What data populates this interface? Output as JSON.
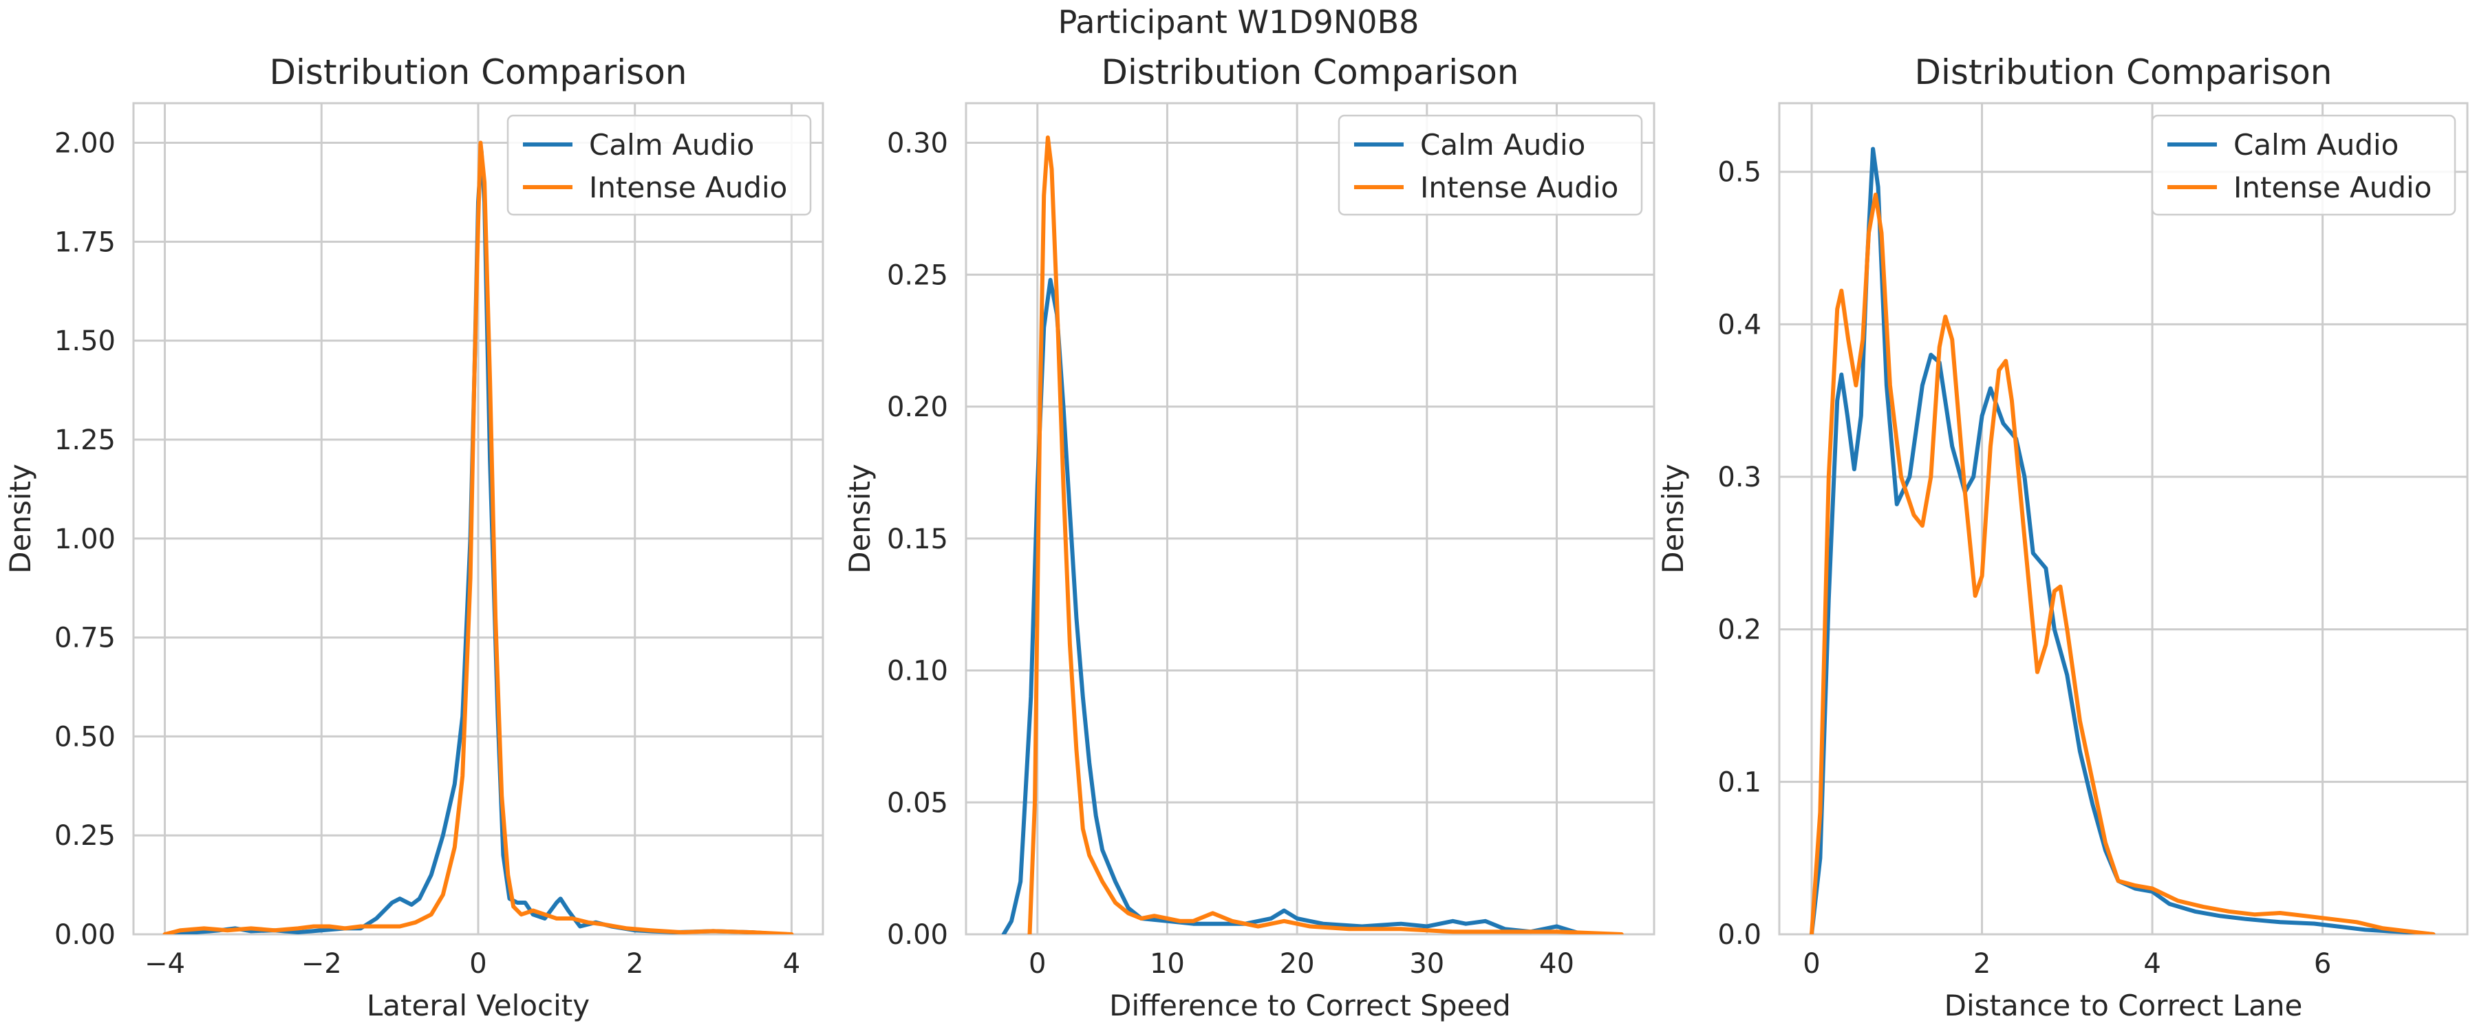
{
  "figure": {
    "suptitle": "Participant W1D9N0B8"
  },
  "colors": {
    "calm": "#1f77b4",
    "intense": "#ff7f0e",
    "grid": "#cccccc",
    "text": "#262626"
  },
  "chart_data": [
    {
      "type": "line",
      "title": "Distribution Comparison",
      "xlabel": "Lateral Velocity",
      "ylabel": "Density",
      "xlim": [
        -4.4,
        4.4
      ],
      "ylim": [
        0,
        2.1
      ],
      "xticks": [
        -4,
        -2,
        0,
        2,
        4
      ],
      "xtick_labels": [
        "−4",
        "−2",
        "0",
        "2",
        "4"
      ],
      "yticks": [
        0,
        0.25,
        0.5,
        0.75,
        1.0,
        1.25,
        1.5,
        1.75,
        2.0
      ],
      "ytick_labels": [
        "0.00",
        "0.25",
        "0.50",
        "0.75",
        "1.00",
        "1.25",
        "1.50",
        "1.75",
        "2.00"
      ],
      "grid": true,
      "legend_position": "top-right",
      "series": [
        {
          "name": "Calm Audio",
          "color": "#1f77b4",
          "points": [
            [
              -3.9,
              0.0
            ],
            [
              -3.6,
              0.005
            ],
            [
              -3.3,
              0.01
            ],
            [
              -3.1,
              0.015
            ],
            [
              -2.9,
              0.008
            ],
            [
              -2.6,
              0.01
            ],
            [
              -2.3,
              0.005
            ],
            [
              -2.0,
              0.01
            ],
            [
              -1.7,
              0.015
            ],
            [
              -1.5,
              0.015
            ],
            [
              -1.3,
              0.04
            ],
            [
              -1.1,
              0.08
            ],
            [
              -1.0,
              0.09
            ],
            [
              -0.85,
              0.075
            ],
            [
              -0.75,
              0.09
            ],
            [
              -0.6,
              0.15
            ],
            [
              -0.45,
              0.25
            ],
            [
              -0.3,
              0.38
            ],
            [
              -0.2,
              0.55
            ],
            [
              -0.1,
              1.0
            ],
            [
              -0.05,
              1.4
            ],
            [
              0.0,
              1.85
            ],
            [
              0.04,
              1.98
            ],
            [
              0.08,
              1.85
            ],
            [
              0.15,
              1.2
            ],
            [
              0.25,
              0.55
            ],
            [
              0.32,
              0.2
            ],
            [
              0.4,
              0.09
            ],
            [
              0.5,
              0.08
            ],
            [
              0.6,
              0.08
            ],
            [
              0.7,
              0.05
            ],
            [
              0.85,
              0.04
            ],
            [
              1.0,
              0.08
            ],
            [
              1.05,
              0.09
            ],
            [
              1.15,
              0.06
            ],
            [
              1.3,
              0.02
            ],
            [
              1.5,
              0.03
            ],
            [
              1.7,
              0.02
            ],
            [
              2.0,
              0.01
            ],
            [
              2.5,
              0.005
            ],
            [
              3.0,
              0.008
            ],
            [
              3.5,
              0.005
            ],
            [
              3.9,
              0.0
            ]
          ]
        },
        {
          "name": "Intense Audio",
          "color": "#ff7f0e",
          "points": [
            [
              -4.0,
              0.0
            ],
            [
              -3.8,
              0.01
            ],
            [
              -3.5,
              0.015
            ],
            [
              -3.2,
              0.01
            ],
            [
              -2.9,
              0.015
            ],
            [
              -2.6,
              0.01
            ],
            [
              -2.3,
              0.015
            ],
            [
              -2.1,
              0.02
            ],
            [
              -1.9,
              0.02
            ],
            [
              -1.7,
              0.015
            ],
            [
              -1.5,
              0.02
            ],
            [
              -1.2,
              0.02
            ],
            [
              -1.0,
              0.02
            ],
            [
              -0.8,
              0.03
            ],
            [
              -0.6,
              0.05
            ],
            [
              -0.45,
              0.1
            ],
            [
              -0.3,
              0.22
            ],
            [
              -0.2,
              0.4
            ],
            [
              -0.1,
              0.9
            ],
            [
              -0.05,
              1.4
            ],
            [
              0.0,
              1.8
            ],
            [
              0.03,
              2.0
            ],
            [
              0.08,
              1.9
            ],
            [
              0.15,
              1.4
            ],
            [
              0.22,
              0.8
            ],
            [
              0.3,
              0.35
            ],
            [
              0.38,
              0.15
            ],
            [
              0.45,
              0.07
            ],
            [
              0.55,
              0.05
            ],
            [
              0.7,
              0.06
            ],
            [
              0.85,
              0.05
            ],
            [
              1.0,
              0.04
            ],
            [
              1.2,
              0.04
            ],
            [
              1.4,
              0.03
            ],
            [
              1.6,
              0.025
            ],
            [
              1.9,
              0.015
            ],
            [
              2.2,
              0.01
            ],
            [
              2.6,
              0.005
            ],
            [
              3.0,
              0.008
            ],
            [
              3.5,
              0.005
            ],
            [
              4.0,
              0.0
            ]
          ]
        }
      ]
    },
    {
      "type": "line",
      "title": "Distribution Comparison",
      "xlabel": "Difference to Correct Speed",
      "ylabel": "Density",
      "xlim": [
        -5.5,
        47.5
      ],
      "ylim": [
        0,
        0.315
      ],
      "xticks": [
        0,
        10,
        20,
        30,
        40
      ],
      "xtick_labels": [
        "0",
        "10",
        "20",
        "30",
        "40"
      ],
      "yticks": [
        0,
        0.05,
        0.1,
        0.15,
        0.2,
        0.25,
        0.3
      ],
      "ytick_labels": [
        "0.00",
        "0.05",
        "0.10",
        "0.15",
        "0.20",
        "0.25",
        "0.30"
      ],
      "grid": true,
      "legend_position": "top-right",
      "series": [
        {
          "name": "Calm Audio",
          "color": "#1f77b4",
          "points": [
            [
              -2.6,
              0.0
            ],
            [
              -2.0,
              0.005
            ],
            [
              -1.3,
              0.02
            ],
            [
              -0.5,
              0.09
            ],
            [
              0.0,
              0.17
            ],
            [
              0.5,
              0.23
            ],
            [
              1.0,
              0.248
            ],
            [
              1.5,
              0.235
            ],
            [
              2.0,
              0.2
            ],
            [
              2.5,
              0.16
            ],
            [
              3.0,
              0.12
            ],
            [
              3.5,
              0.09
            ],
            [
              4.0,
              0.065
            ],
            [
              4.5,
              0.045
            ],
            [
              5.0,
              0.032
            ],
            [
              6.0,
              0.02
            ],
            [
              7.0,
              0.01
            ],
            [
              8.0,
              0.006
            ],
            [
              10.0,
              0.005
            ],
            [
              12.0,
              0.004
            ],
            [
              14.0,
              0.004
            ],
            [
              16.0,
              0.004
            ],
            [
              18.0,
              0.006
            ],
            [
              19.0,
              0.009
            ],
            [
              20.0,
              0.006
            ],
            [
              22.0,
              0.004
            ],
            [
              25.0,
              0.003
            ],
            [
              28.0,
              0.004
            ],
            [
              30.0,
              0.003
            ],
            [
              32.0,
              0.005
            ],
            [
              33.0,
              0.004
            ],
            [
              34.5,
              0.005
            ],
            [
              36.0,
              0.002
            ],
            [
              38.0,
              0.001
            ],
            [
              40.0,
              0.003
            ],
            [
              42.0,
              0.0
            ]
          ]
        },
        {
          "name": "Intense Audio",
          "color": "#ff7f0e",
          "points": [
            [
              -0.6,
              0.0
            ],
            [
              -0.2,
              0.05
            ],
            [
              0.2,
              0.2
            ],
            [
              0.5,
              0.28
            ],
            [
              0.8,
              0.302
            ],
            [
              1.1,
              0.29
            ],
            [
              1.5,
              0.24
            ],
            [
              2.0,
              0.17
            ],
            [
              2.5,
              0.11
            ],
            [
              3.0,
              0.07
            ],
            [
              3.5,
              0.04
            ],
            [
              4.0,
              0.03
            ],
            [
              5.0,
              0.02
            ],
            [
              6.0,
              0.012
            ],
            [
              7.0,
              0.008
            ],
            [
              8.0,
              0.006
            ],
            [
              9.0,
              0.007
            ],
            [
              10.0,
              0.006
            ],
            [
              11.0,
              0.005
            ],
            [
              12.0,
              0.005
            ],
            [
              13.5,
              0.008
            ],
            [
              15.0,
              0.005
            ],
            [
              17.0,
              0.003
            ],
            [
              19.0,
              0.005
            ],
            [
              21.0,
              0.003
            ],
            [
              24.0,
              0.002
            ],
            [
              28.0,
              0.002
            ],
            [
              32.0,
              0.001
            ],
            [
              36.0,
              0.001
            ],
            [
              40.0,
              0.001
            ],
            [
              45.0,
              0.0
            ]
          ]
        }
      ]
    },
    {
      "type": "line",
      "title": "Distribution Comparison",
      "xlabel": "Distance to Correct Lane",
      "ylabel": "Density",
      "xlim": [
        -0.38,
        7.7
      ],
      "ylim": [
        0,
        0.545
      ],
      "xticks": [
        0,
        2,
        4,
        6
      ],
      "xtick_labels": [
        "0",
        "2",
        "4",
        "6"
      ],
      "yticks": [
        0,
        0.1,
        0.2,
        0.3,
        0.4,
        0.5
      ],
      "ytick_labels": [
        "0.0",
        "0.1",
        "0.2",
        "0.3",
        "0.4",
        "0.5"
      ],
      "grid": true,
      "legend_position": "top-right",
      "series": [
        {
          "name": "Calm Audio",
          "color": "#1f77b4",
          "points": [
            [
              0.0,
              0.0
            ],
            [
              0.1,
              0.05
            ],
            [
              0.2,
              0.22
            ],
            [
              0.3,
              0.35
            ],
            [
              0.35,
              0.367
            ],
            [
              0.42,
              0.34
            ],
            [
              0.5,
              0.305
            ],
            [
              0.58,
              0.34
            ],
            [
              0.65,
              0.44
            ],
            [
              0.72,
              0.515
            ],
            [
              0.78,
              0.49
            ],
            [
              0.88,
              0.36
            ],
            [
              1.0,
              0.282
            ],
            [
              1.15,
              0.3
            ],
            [
              1.3,
              0.36
            ],
            [
              1.4,
              0.38
            ],
            [
              1.5,
              0.375
            ],
            [
              1.65,
              0.32
            ],
            [
              1.8,
              0.29
            ],
            [
              1.9,
              0.3
            ],
            [
              2.0,
              0.34
            ],
            [
              2.1,
              0.358
            ],
            [
              2.25,
              0.335
            ],
            [
              2.4,
              0.325
            ],
            [
              2.5,
              0.3
            ],
            [
              2.6,
              0.25
            ],
            [
              2.75,
              0.24
            ],
            [
              2.85,
              0.2
            ],
            [
              3.0,
              0.17
            ],
            [
              3.15,
              0.12
            ],
            [
              3.3,
              0.085
            ],
            [
              3.45,
              0.055
            ],
            [
              3.6,
              0.035
            ],
            [
              3.8,
              0.03
            ],
            [
              4.0,
              0.028
            ],
            [
              4.2,
              0.02
            ],
            [
              4.5,
              0.015
            ],
            [
              4.8,
              0.012
            ],
            [
              5.1,
              0.01
            ],
            [
              5.5,
              0.008
            ],
            [
              5.9,
              0.007
            ],
            [
              6.2,
              0.005
            ],
            [
              6.5,
              0.003
            ],
            [
              6.8,
              0.002
            ],
            [
              7.1,
              0.001
            ],
            [
              7.3,
              0.0
            ]
          ]
        },
        {
          "name": "Intense Audio",
          "color": "#ff7f0e",
          "points": [
            [
              0.0,
              0.0
            ],
            [
              0.1,
              0.08
            ],
            [
              0.2,
              0.3
            ],
            [
              0.3,
              0.41
            ],
            [
              0.35,
              0.422
            ],
            [
              0.43,
              0.39
            ],
            [
              0.52,
              0.36
            ],
            [
              0.6,
              0.39
            ],
            [
              0.67,
              0.46
            ],
            [
              0.75,
              0.485
            ],
            [
              0.82,
              0.46
            ],
            [
              0.92,
              0.36
            ],
            [
              1.05,
              0.3
            ],
            [
              1.2,
              0.275
            ],
            [
              1.3,
              0.268
            ],
            [
              1.4,
              0.3
            ],
            [
              1.5,
              0.385
            ],
            [
              1.57,
              0.405
            ],
            [
              1.65,
              0.39
            ],
            [
              1.8,
              0.29
            ],
            [
              1.92,
              0.222
            ],
            [
              2.0,
              0.235
            ],
            [
              2.1,
              0.32
            ],
            [
              2.2,
              0.37
            ],
            [
              2.28,
              0.376
            ],
            [
              2.35,
              0.35
            ],
            [
              2.5,
              0.26
            ],
            [
              2.65,
              0.172
            ],
            [
              2.75,
              0.19
            ],
            [
              2.85,
              0.225
            ],
            [
              2.92,
              0.228
            ],
            [
              3.0,
              0.2
            ],
            [
              3.15,
              0.14
            ],
            [
              3.3,
              0.1
            ],
            [
              3.45,
              0.06
            ],
            [
              3.6,
              0.035
            ],
            [
              3.8,
              0.032
            ],
            [
              4.0,
              0.03
            ],
            [
              4.3,
              0.022
            ],
            [
              4.6,
              0.018
            ],
            [
              4.9,
              0.015
            ],
            [
              5.2,
              0.013
            ],
            [
              5.5,
              0.014
            ],
            [
              5.8,
              0.012
            ],
            [
              6.1,
              0.01
            ],
            [
              6.4,
              0.008
            ],
            [
              6.7,
              0.004
            ],
            [
              7.0,
              0.002
            ],
            [
              7.3,
              0.0
            ]
          ]
        }
      ]
    }
  ]
}
